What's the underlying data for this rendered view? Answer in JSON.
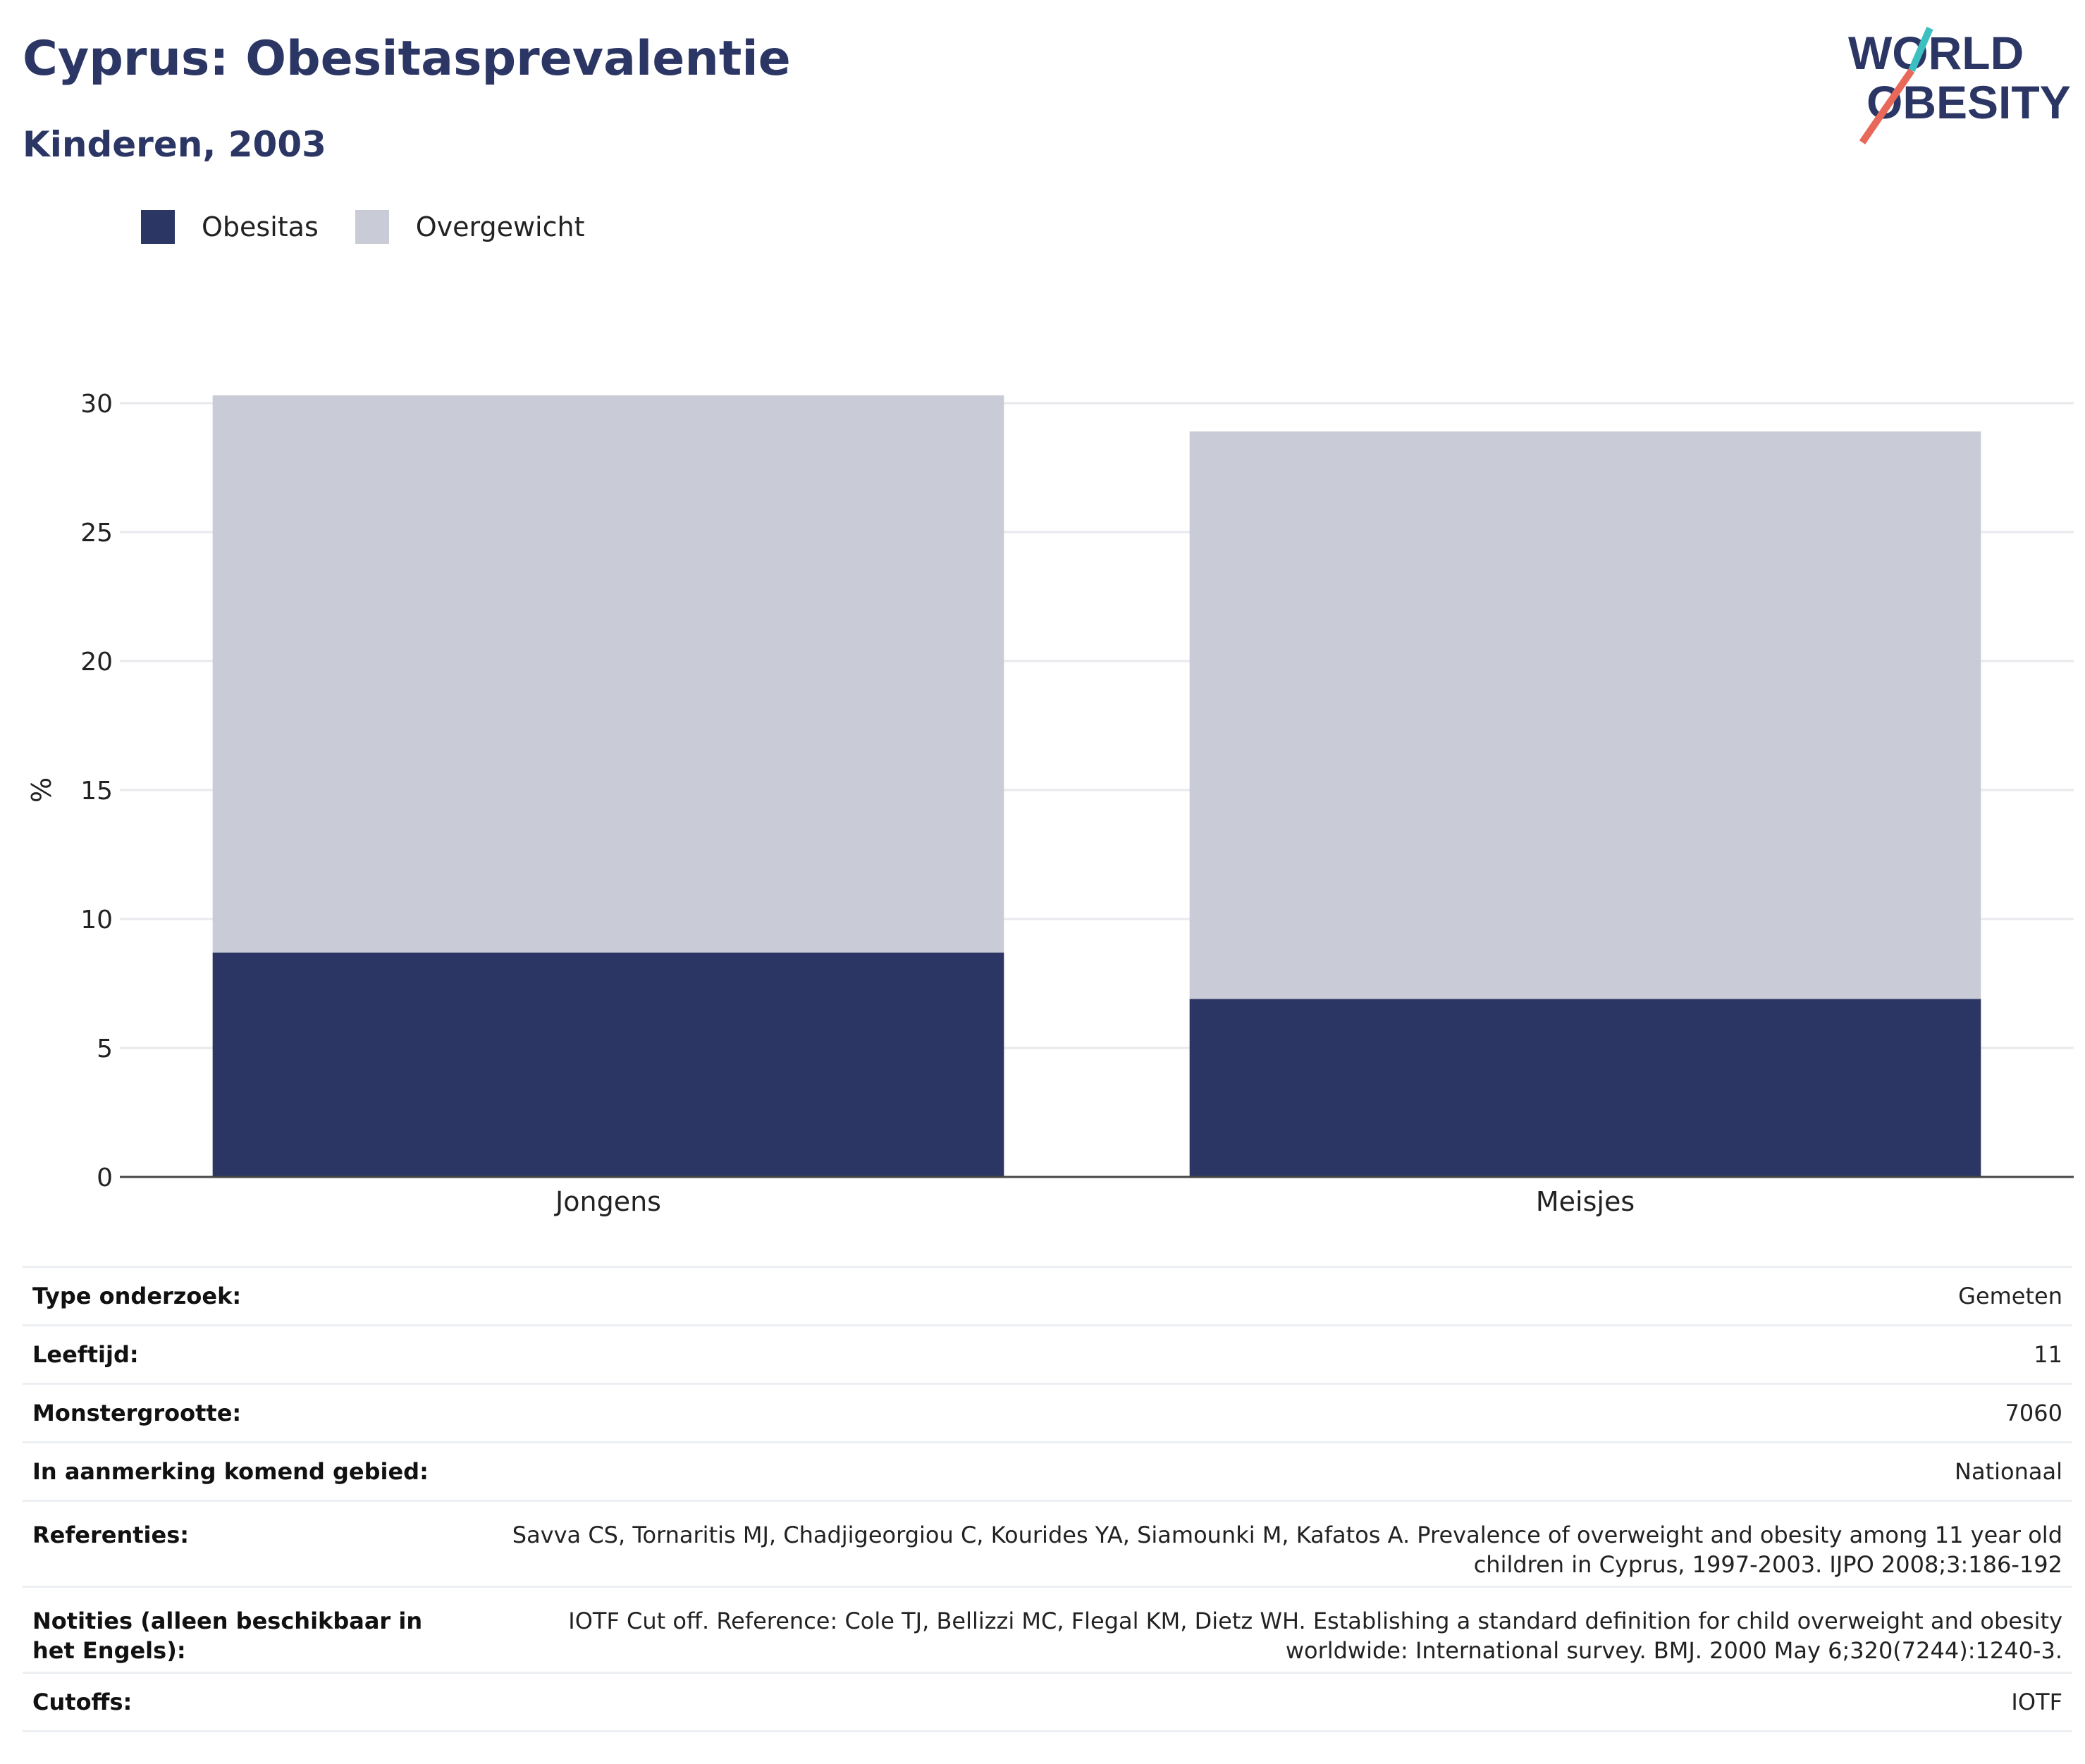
{
  "header": {
    "title": "Cyprus: Obesitasprevalentie",
    "subtitle": "Kinderen, 2003"
  },
  "logo": {
    "line1": "WORLD",
    "line2": "OBESITY",
    "colors": {
      "text": "#2b3664",
      "slash_top": "#3bbfc0",
      "slash_bottom": "#e8685a"
    }
  },
  "legend": [
    {
      "label": "Obesitas",
      "color": "#2b3664"
    },
    {
      "label": "Overgewicht",
      "color": "#c9cbd6"
    }
  ],
  "chart_data": {
    "type": "bar",
    "stacked": true,
    "categories": [
      "Jongens",
      "Meisjes"
    ],
    "series": [
      {
        "name": "Obesitas",
        "values": [
          8.7,
          6.9
        ],
        "color": "#2b3664"
      },
      {
        "name": "Overgewicht",
        "values": [
          21.6,
          22.0
        ],
        "color": "#c9cbd6"
      }
    ],
    "ylabel": "%",
    "ylim": [
      0,
      30
    ],
    "yticks": [
      0,
      5,
      10,
      15,
      20,
      25,
      30
    ],
    "grid": true,
    "legend_position": "top-left"
  },
  "meta": [
    {
      "key": "Type onderzoek:",
      "value": "Gemeten"
    },
    {
      "key": "Leeftijd:",
      "value": "11"
    },
    {
      "key": "Monstergrootte:",
      "value": "7060"
    },
    {
      "key": "In aanmerking komend gebied:",
      "value": "Nationaal"
    },
    {
      "key": "Referenties:",
      "value": "Savva CS, Tornaritis MJ, Chadjigeorgiou C, Kourides YA, Siamounki M, Kafatos A. Prevalence of overweight and obesity among 11 year old children in Cyprus, 1997-2003. IJPO 2008;3:186-192"
    },
    {
      "key": "Notities (alleen beschikbaar in het Engels):",
      "value": "IOTF Cut off. Reference: Cole TJ, Bellizzi MC, Flegal KM, Dietz WH. Establishing a standard definition for child overweight and obesity worldwide: International survey. BMJ. 2000 May 6;320(7244):1240-3."
    },
    {
      "key": "Cutoffs:",
      "value": "IOTF"
    }
  ]
}
